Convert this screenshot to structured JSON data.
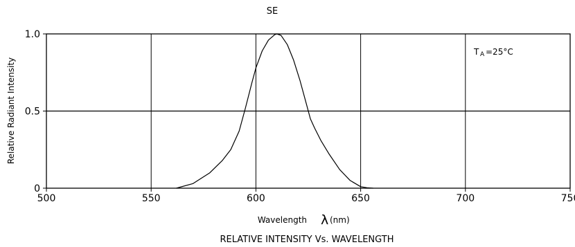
{
  "chart_data": {
    "type": "line",
    "title": "SE",
    "caption": "RELATIVE INTENSITY Vs. WAVELENGTH",
    "xlabel": "Wavelength",
    "xlabel_symbol": "λ",
    "xlabel_unit": "(nm)",
    "ylabel": "Relative Radiant Intensity",
    "annotation": "T",
    "annotation_sub": "A",
    "annotation_value": "=25°C",
    "xlim": [
      500,
      750
    ],
    "ylim": [
      0,
      1.0
    ],
    "xticks": [
      500,
      550,
      600,
      650,
      700,
      750
    ],
    "xtick_labels": [
      "500",
      "550",
      "600",
      "650",
      "700",
      "750"
    ],
    "yticks": [
      0,
      0.5,
      1.0
    ],
    "ytick_labels": [
      "0",
      "0.5",
      "1.0"
    ],
    "horizontal_gridline": 0.5,
    "grid": true,
    "series": [
      {
        "color": "#000000",
        "x": [
          562,
          570,
          578,
          584,
          588,
          592,
          595,
          598,
          600,
          603,
          606,
          609,
          610,
          612,
          615,
          618,
          621,
          624,
          626,
          628,
          631,
          635,
          640,
          645,
          650,
          653,
          656
        ],
        "y": [
          0.0,
          0.03,
          0.1,
          0.18,
          0.25,
          0.37,
          0.52,
          0.68,
          0.78,
          0.89,
          0.96,
          0.995,
          1.0,
          0.99,
          0.93,
          0.83,
          0.7,
          0.55,
          0.45,
          0.39,
          0.31,
          0.22,
          0.12,
          0.05,
          0.01,
          0.003,
          0.0
        ]
      }
    ]
  }
}
